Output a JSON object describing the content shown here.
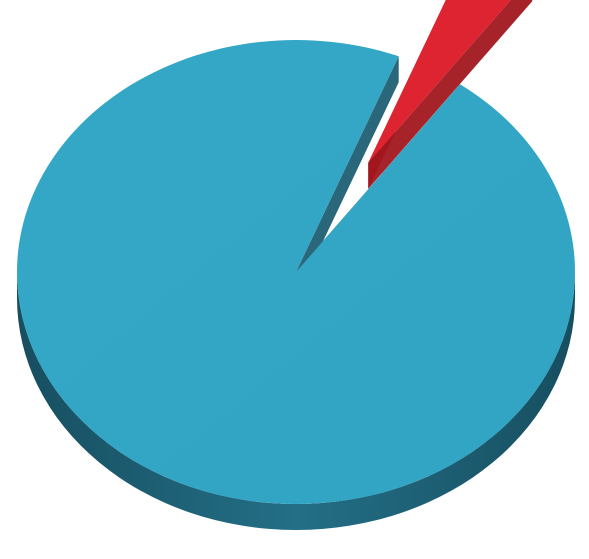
{
  "chart_data": {
    "type": "pie",
    "style": "3d-exploded",
    "title": "",
    "legend": "none",
    "data_labels": "none",
    "slices": [
      {
        "name": "",
        "value": 96,
        "color": "#33a6c6",
        "side_color": "#1f5f73"
      },
      {
        "name": "",
        "value": 4,
        "color": "#dd2430",
        "side_color": "#a1171e",
        "exploded": true
      }
    ]
  }
}
